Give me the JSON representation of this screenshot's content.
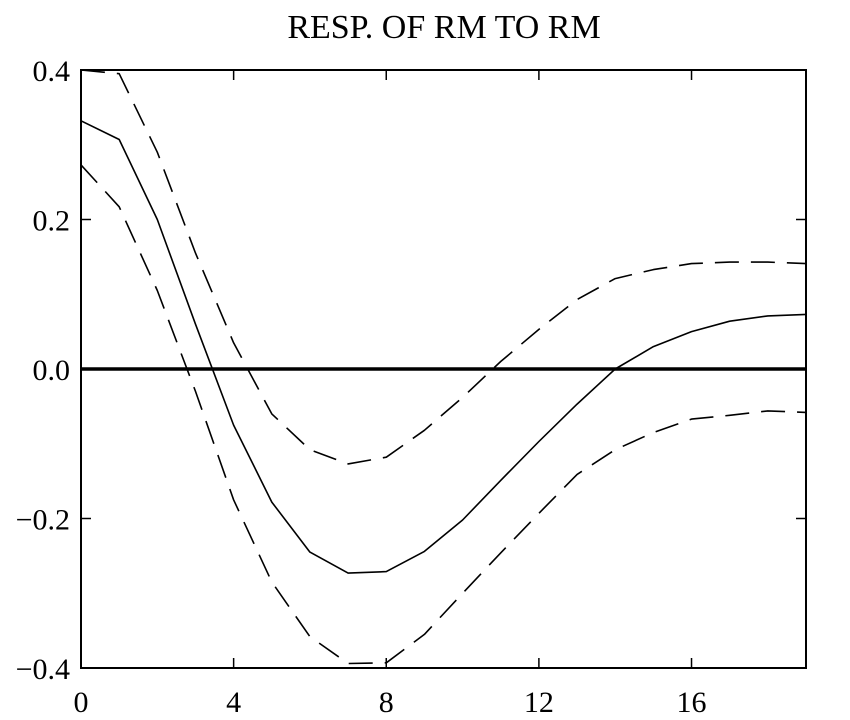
{
  "chart_data": {
    "type": "line",
    "title": "RESP. OF RM TO RM",
    "xlabel": "",
    "ylabel": "",
    "xlim": [
      0,
      19
    ],
    "ylim": [
      -0.4,
      0.4
    ],
    "x_ticks": [
      {
        "value": 0,
        "label": "0"
      },
      {
        "value": 4,
        "label": "4"
      },
      {
        "value": 8,
        "label": "8"
      },
      {
        "value": 12,
        "label": "12"
      },
      {
        "value": 16,
        "label": "16"
      }
    ],
    "y_ticks": [
      {
        "value": 0.4,
        "label": "0.4"
      },
      {
        "value": 0.2,
        "label": "0.2"
      },
      {
        "value": 0.0,
        "label": "0.0"
      },
      {
        "value": -0.2,
        "label": "−0.2"
      },
      {
        "value": -0.4,
        "label": "−0.4"
      }
    ],
    "grid": false,
    "legend": "none",
    "zero_line": 0.0,
    "x": [
      0,
      1,
      2,
      3,
      4,
      5,
      6,
      7,
      8,
      9,
      10,
      11,
      12,
      13,
      14,
      15,
      16,
      17,
      18,
      19
    ],
    "series": [
      {
        "style": "solid",
        "values": [
          0.332,
          0.307,
          0.2,
          0.06,
          -0.075,
          -0.178,
          -0.245,
          -0.273,
          -0.271,
          -0.244,
          -0.202,
          -0.149,
          -0.097,
          -0.047,
          0.0,
          0.03,
          0.05,
          0.064,
          0.071,
          0.073
        ]
      },
      {
        "style": "dashed",
        "values": [
          0.4,
          0.395,
          0.29,
          0.155,
          0.035,
          -0.06,
          -0.108,
          -0.127,
          -0.118,
          -0.082,
          -0.038,
          0.01,
          0.053,
          0.093,
          0.121,
          0.133,
          0.141,
          0.143,
          0.143,
          0.141
        ]
      },
      {
        "style": "dashed",
        "values": [
          0.273,
          0.217,
          0.105,
          -0.03,
          -0.175,
          -0.285,
          -0.358,
          -0.394,
          -0.393,
          -0.355,
          -0.3,
          -0.246,
          -0.193,
          -0.141,
          -0.108,
          -0.085,
          -0.067,
          -0.062,
          -0.056,
          -0.058
        ]
      }
    ],
    "colors": {
      "line": "#000000",
      "background": "#ffffff"
    }
  }
}
